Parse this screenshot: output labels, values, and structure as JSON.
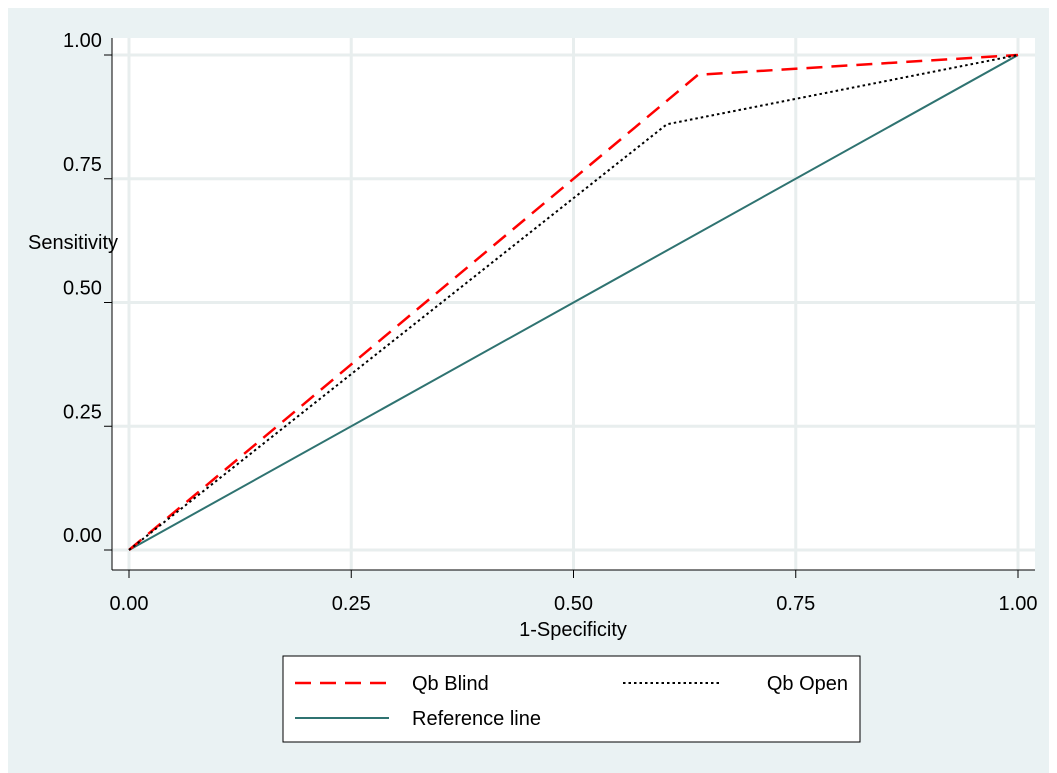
{
  "chart_data": {
    "type": "line",
    "xlabel": "1-Specificity",
    "ylabel": "Sensitivity",
    "xlim": [
      0,
      1
    ],
    "ylim": [
      0,
      1
    ],
    "x_ticks": [
      "0.00",
      "0.25",
      "0.50",
      "0.75",
      "1.00"
    ],
    "y_ticks": [
      "0.00",
      "0.25",
      "0.50",
      "0.75",
      "1.00"
    ],
    "grid": true,
    "legend_position": "bottom",
    "series": [
      {
        "name": "Qb Blind",
        "color": "#ff0000",
        "style": "dashed",
        "x": [
          0,
          0.64,
          1.0
        ],
        "y": [
          0,
          0.96,
          1.0
        ]
      },
      {
        "name": "Qb Open",
        "color": "#000000",
        "style": "dotted",
        "x": [
          0,
          0.605,
          1.0
        ],
        "y": [
          0,
          0.86,
          1.0
        ]
      },
      {
        "name": "Reference line",
        "color": "#2f7371",
        "style": "solid",
        "x": [
          0,
          1.0
        ],
        "y": [
          0,
          1.0
        ]
      }
    ]
  }
}
